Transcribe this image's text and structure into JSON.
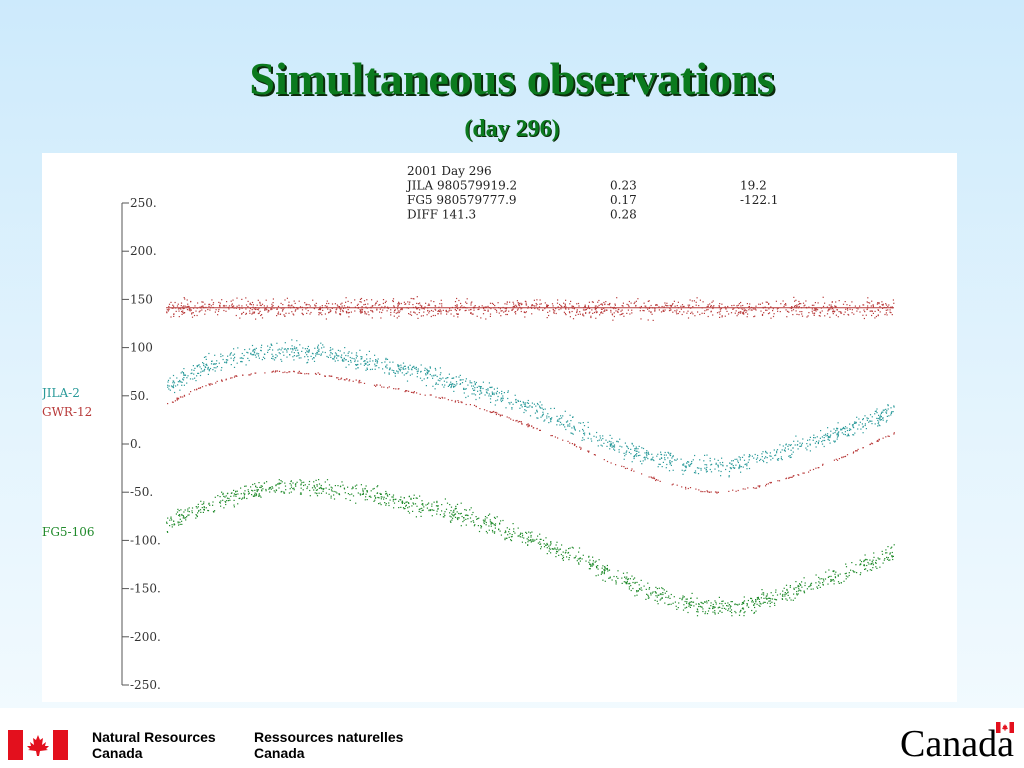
{
  "slide": {
    "title": "Simultaneous observations",
    "subtitle": "(day 296)"
  },
  "footer": {
    "org_en_line1": "Natural Resources",
    "org_en_line2": "Canada",
    "org_fr_line1": "Ressources naturelles",
    "org_fr_line2": "Canada",
    "wordmark": "Canada"
  },
  "colors": {
    "title": "#0b7a1e",
    "gwr": "#b83a3a",
    "jila": "#2a9a9a",
    "fg5": "#1f8a2a",
    "axis": "#555555"
  },
  "chart_data": {
    "type": "scatter",
    "info_box": [
      [
        "2001 Day 296",
        "",
        ""
      ],
      [
        "JILA 980579919.2",
        "0.23",
        "19.2"
      ],
      [
        "FG5  980579777.9",
        "0.17",
        "-122.1"
      ],
      [
        "DIFF      141.3",
        "0.28",
        ""
      ]
    ],
    "y_ticks": [
      "250.",
      "200.",
      "150",
      "100",
      "50.",
      "0.",
      "-50.",
      "-100.",
      "-150.",
      "-200.",
      "-250."
    ],
    "ylim": [
      -250,
      250
    ],
    "xlim": [
      0,
      1
    ],
    "series": [
      {
        "name": "JILA-2",
        "color": "#2a9a9a",
        "x": [
          0.0,
          0.05,
          0.1,
          0.15,
          0.2,
          0.25,
          0.3,
          0.35,
          0.4,
          0.45,
          0.5,
          0.55,
          0.6,
          0.65,
          0.7,
          0.75,
          0.8,
          0.85,
          0.9,
          0.95,
          1.0
        ],
        "y": [
          60,
          80,
          92,
          97,
          96,
          90,
          82,
          74,
          64,
          52,
          38,
          22,
          4,
          -10,
          -20,
          -24,
          -18,
          -6,
          6,
          20,
          35
        ],
        "spread": 14
      },
      {
        "name": "GWR-12",
        "color": "#b83a3a",
        "x": [
          0.0,
          0.05,
          0.1,
          0.15,
          0.2,
          0.25,
          0.3,
          0.35,
          0.4,
          0.45,
          0.5,
          0.55,
          0.6,
          0.65,
          0.7,
          0.75,
          0.8,
          0.85,
          0.9,
          0.95,
          1.0
        ],
        "y": [
          42,
          60,
          72,
          76,
          74,
          67,
          60,
          53,
          45,
          33,
          19,
          3,
          -15,
          -30,
          -43,
          -50,
          -46,
          -36,
          -22,
          -6,
          12
        ],
        "spread": 2
      },
      {
        "name": "FG5-106",
        "color": "#1f8a2a",
        "x": [
          0.0,
          0.05,
          0.1,
          0.15,
          0.2,
          0.25,
          0.3,
          0.35,
          0.4,
          0.45,
          0.5,
          0.55,
          0.6,
          0.65,
          0.7,
          0.75,
          0.8,
          0.85,
          0.9,
          0.95,
          1.0
        ],
        "y": [
          -82,
          -65,
          -52,
          -45,
          -44,
          -48,
          -55,
          -63,
          -72,
          -84,
          -98,
          -113,
          -130,
          -148,
          -162,
          -170,
          -166,
          -155,
          -142,
          -128,
          -112
        ],
        "spread": 14
      },
      {
        "name": "DIFF",
        "color": "#b83a3a",
        "x": [
          0.0,
          0.1,
          0.2,
          0.3,
          0.4,
          0.5,
          0.6,
          0.7,
          0.8,
          0.9,
          1.0
        ],
        "y": [
          141.3,
          141.3,
          141.3,
          141.3,
          141.3,
          141.3,
          141.3,
          141.3,
          141.3,
          141.3,
          141.3
        ],
        "spread": 14
      }
    ]
  }
}
